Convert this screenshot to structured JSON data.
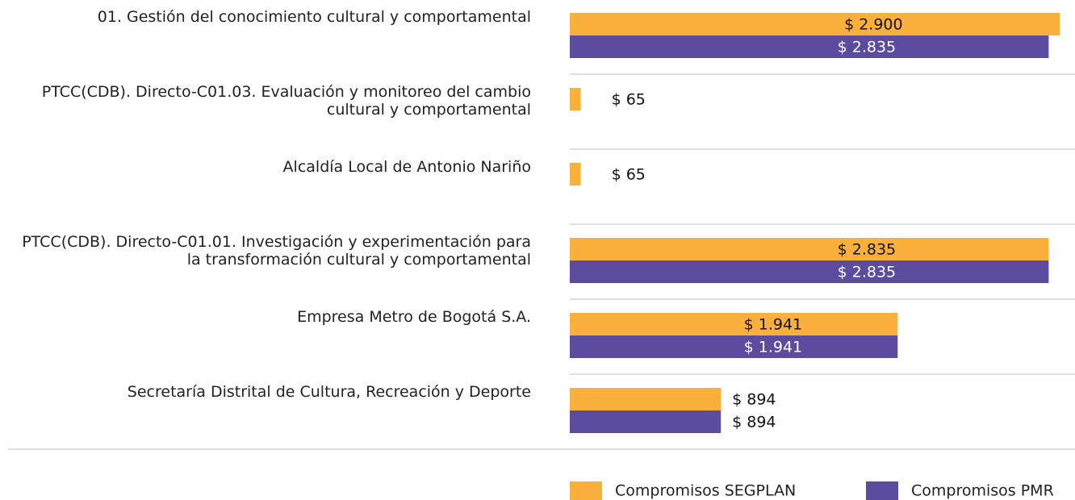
{
  "chart_data": {
    "type": "hbar",
    "categories": [
      "01. Gestión del conocimiento cultural y comportamental",
      "PTCC(CDB). Directo-C01.03. Evaluación y monitoreo del cambio cultural y comportamental",
      "Alcaldía Local de Antonio Nariño",
      "PTCC(CDB). Directo-C01.01. Investigación y experimentación para la transformación cultural y comportamental",
      "Empresa Metro de Bogotá S.A.",
      "Secretaría Distrital de Cultura, Recreación y Deporte"
    ],
    "series": [
      {
        "name": "Compromisos SEGPLAN",
        "color": "#fbb03b",
        "values": [
          2900,
          65,
          65,
          2835,
          1941,
          894
        ],
        "value_labels": [
          "$ 2.900",
          "$ 65",
          "$ 65",
          "$ 2.835",
          "$ 1.941",
          "$ 894"
        ]
      },
      {
        "name": "Compromisos PMR",
        "color": "#5b4c9f",
        "values": [
          2835,
          null,
          null,
          2835,
          1941,
          894
        ],
        "value_labels": [
          "$ 2.835",
          null,
          null,
          "$ 2.835",
          "$ 1.941",
          "$ 894"
        ]
      }
    ]
  }
}
